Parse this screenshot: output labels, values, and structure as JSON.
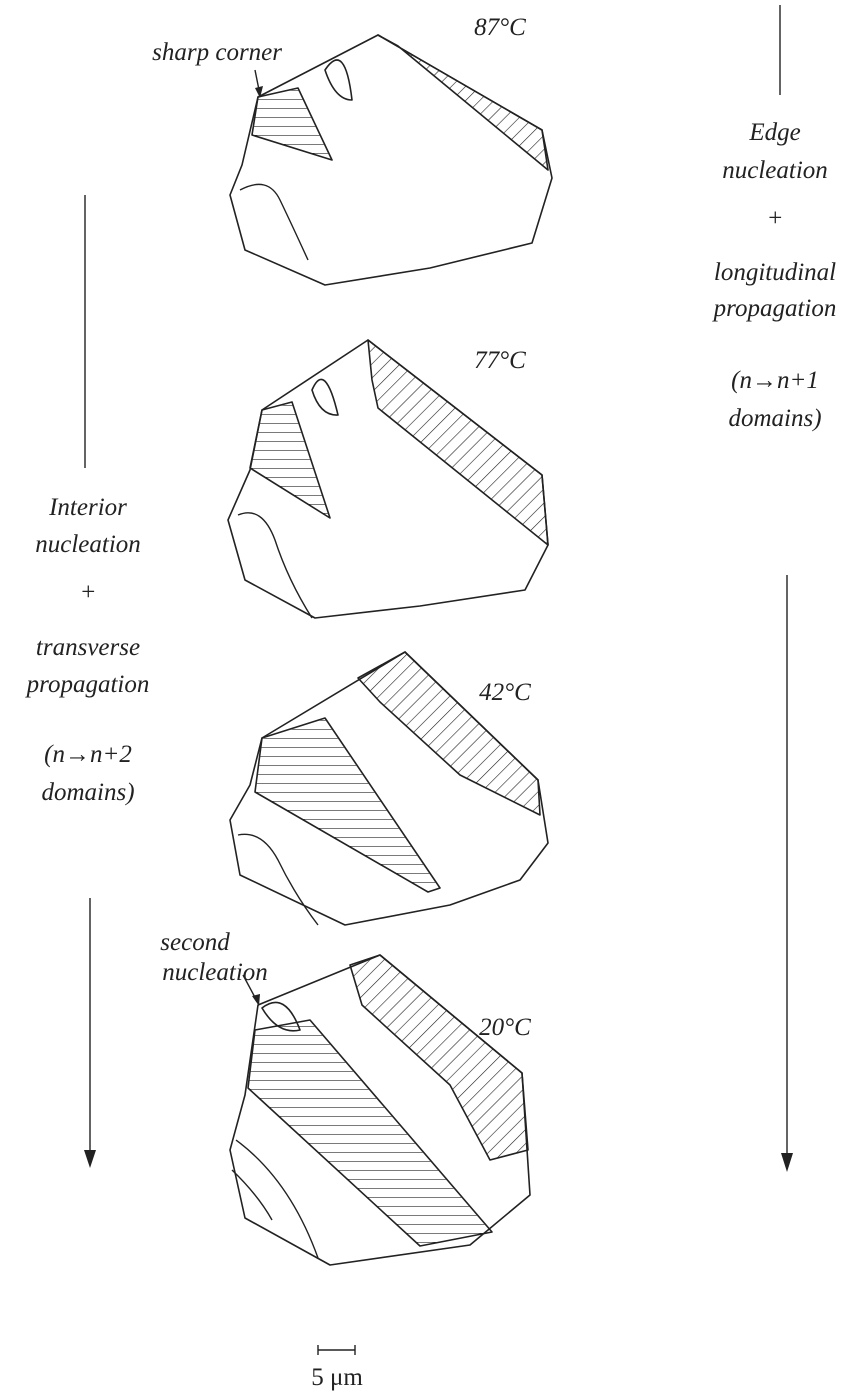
{
  "panels": [
    {
      "temperature": "87°C"
    },
    {
      "temperature": "77°C"
    },
    {
      "temperature": "42°C"
    },
    {
      "temperature": "20°C"
    }
  ],
  "annotations": {
    "sharp_corner": "sharp corner",
    "second_nucleation": [
      "second",
      "nucleation"
    ]
  },
  "right_label": [
    "Edge",
    "nucleation",
    "+",
    "longitudinal",
    "propagation",
    "(n→n+1",
    "domains)"
  ],
  "left_label": [
    "Interior",
    "nucleation",
    "+",
    "transverse",
    "propagation",
    "(n→n+2",
    "domains)"
  ],
  "scale_bar": "5 μm"
}
